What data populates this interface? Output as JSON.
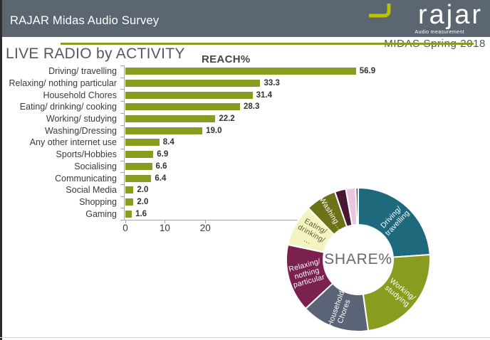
{
  "header": {
    "title": "RAJAR Midas Audio Survey",
    "logo_text": "rajar",
    "logo_tagline": "Audio measurement",
    "edition": "MIDAS Spring 2018"
  },
  "page_title": "LIVE RADIO by ACTIVITY",
  "colors": {
    "header_bg": "#5c6670",
    "accent_olive": "#8a9c20",
    "logo_mark_green": "#b8c400",
    "axis_gray": "#a6a6a6"
  },
  "chart_data": [
    {
      "type": "bar",
      "orientation": "horizontal",
      "title": "REACH%",
      "categories": [
        "Driving/ travelling",
        "Relaxing/ nothing particular",
        "Household Chores",
        "Eating/ drinking/ cooking",
        "Working/ studying",
        "Washing/Dressing",
        "Any other internet use",
        "Sports/Hobbies",
        "Socialising",
        "Communicating",
        "Social Media",
        "Shopping",
        "Gaming"
      ],
      "values": [
        56.9,
        33.3,
        31.4,
        28.3,
        22.2,
        19.0,
        8.4,
        6.9,
        6.6,
        6.4,
        2.0,
        2.0,
        1.6
      ],
      "value_labels": [
        "56.9",
        "33.3",
        "31.4",
        "28.3",
        "22.2",
        "19.0",
        "8.4",
        "6.9",
        "6.6",
        "6.4",
        "2.0",
        "2.0",
        "1.6"
      ],
      "bar_color": "#8a9c20",
      "xticks": [
        0,
        10,
        20
      ],
      "xtick_labels": [
        "0",
        "10",
        "20"
      ],
      "grid": false,
      "legend": false
    },
    {
      "type": "pie",
      "subtype": "donut",
      "title": "SHARE%",
      "note": "share values estimated from arc angles; small slices unlabeled in source",
      "segments": [
        {
          "label": "Driving/ travelling",
          "label_lines": [
            "Driving/",
            "travelling"
          ],
          "value_pct": 23.9,
          "start_deg": 0,
          "end_deg": 86,
          "color": "#1e6a7c",
          "label_color": "#ffffff"
        },
        {
          "label": "Working/ studying",
          "label_lines": [
            "Working/",
            "studying"
          ],
          "value_pct": 23.9,
          "start_deg": 86,
          "end_deg": 172,
          "color": "#8a9c20",
          "label_color": "#ffffff"
        },
        {
          "label": "Household Chores",
          "label_lines": [
            "Household",
            "Chores"
          ],
          "value_pct": 15.3,
          "start_deg": 172,
          "end_deg": 227,
          "color": "#5b6377",
          "label_color": "#ffffff"
        },
        {
          "label": "Relaxing/ nothing particular",
          "label_lines": [
            "Relaxing/",
            "nothing",
            "particular"
          ],
          "value_pct": 15.3,
          "start_deg": 227,
          "end_deg": 282,
          "color": "#7a2150",
          "label_color": "#ffffff"
        },
        {
          "label": "Eating/ drinking/ …",
          "label_lines": [
            "Eating/",
            "drinking/",
            "…"
          ],
          "value_pct": 9.4,
          "start_deg": 282,
          "end_deg": 316,
          "color": "#f3f4c2",
          "label_color": "#5e6030"
        },
        {
          "label": "Washing…",
          "label_lines": [
            "Washing…"
          ],
          "value_pct": 6.9,
          "start_deg": 316,
          "end_deg": 341,
          "color": "#6b7218",
          "label_color": "#ffffff"
        },
        {
          "label": "",
          "label_lines": [],
          "value_pct": 2.5,
          "start_deg": 341,
          "end_deg": 350,
          "color": "#471734",
          "label_color": ""
        },
        {
          "label": "",
          "label_lines": [],
          "value_pct": 2.2,
          "start_deg": 350,
          "end_deg": 358,
          "color": "#e9c6dd",
          "label_color": ""
        },
        {
          "label": "",
          "label_lines": [],
          "value_pct": 0.6,
          "start_deg": 358,
          "end_deg": 360,
          "color": "#175d6d",
          "label_color": ""
        }
      ]
    }
  ]
}
